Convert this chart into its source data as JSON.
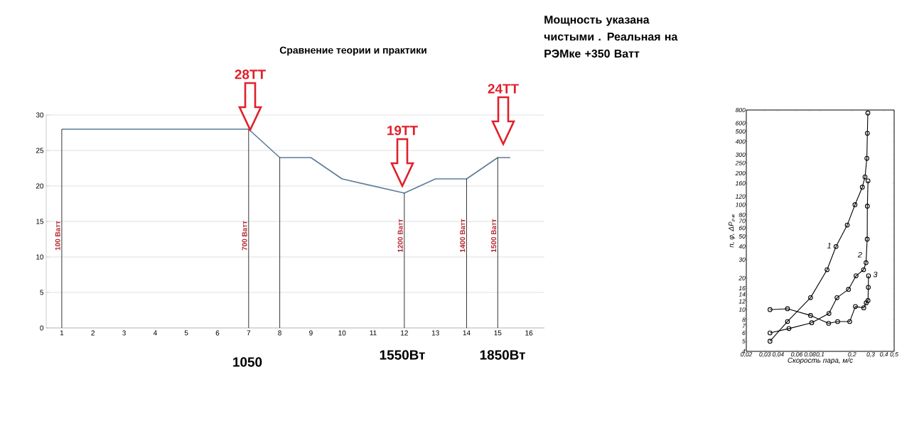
{
  "chart_data": [
    {
      "type": "line",
      "title": "Сравнение теории и практики",
      "x": [
        1,
        2,
        3,
        4,
        5,
        6,
        7,
        8,
        9,
        10,
        11,
        12,
        13,
        14,
        15,
        15.4
      ],
      "values": [
        28,
        28,
        28,
        28,
        28,
        28,
        28,
        24,
        24,
        21,
        20,
        19,
        21,
        21,
        24,
        24
      ],
      "color": "#5b7c99",
      "marker": "none",
      "line_style": "solid",
      "xlim": [
        0.5,
        16.5
      ],
      "ylim": [
        0,
        30
      ],
      "xticks": [
        1,
        2,
        3,
        4,
        5,
        6,
        7,
        8,
        9,
        10,
        11,
        12,
        13,
        14,
        15,
        16
      ],
      "yticks": [
        0,
        5,
        10,
        15,
        20,
        25,
        30
      ],
      "grid": "y",
      "ref_lines": [
        {
          "axis": "x",
          "value": 1,
          "label": "100 Ватт",
          "color": "#000000"
        },
        {
          "axis": "x",
          "value": 7,
          "label": "700 Ватт",
          "color": "#000000"
        },
        {
          "axis": "x",
          "value": 8,
          "color": "#000000"
        },
        {
          "axis": "x",
          "value": 12,
          "label": "1200 Ватт",
          "color": "#000000"
        },
        {
          "axis": "x",
          "value": 14,
          "label": "1400 Ватт",
          "color": "#000000"
        },
        {
          "axis": "x",
          "value": 15,
          "label": "1500 Ватт",
          "color": "#000000"
        }
      ],
      "annotations": [
        "28ТТ",
        "19ТТ",
        "24ТТ",
        "1050",
        "1550Вт",
        "1850Вт",
        "Мощность указана чистыми . Реальная на РЭМке +350 Ватт"
      ]
    },
    {
      "type": "line",
      "xlabel": "Скорость пара, м/с",
      "ylabel": "n, φ, ΔP$_{г-ж}$",
      "log": "xy",
      "marker": "circle",
      "line_style": "solid",
      "grid": false,
      "xlim": [
        0.02,
        0.5
      ],
      "ylim": [
        4,
        800
      ],
      "xticks": [
        {
          "value": 0.02,
          "label": "0,02"
        },
        {
          "value": 0.03,
          "label": "0,03"
        },
        {
          "value": 0.04,
          "label": "0,04"
        },
        {
          "value": 0.06,
          "label": "0,06"
        },
        {
          "value": 0.08,
          "label": "0,08"
        },
        {
          "value": 0.1,
          "label": "0,1"
        },
        {
          "value": 0.2,
          "label": "0,2"
        },
        {
          "value": 0.3,
          "label": "0,3"
        },
        {
          "value": 0.4,
          "label": "0,4"
        },
        {
          "value": 0.5,
          "label": "0,5"
        }
      ],
      "yticks": [
        4,
        5,
        6,
        7,
        8,
        10,
        12,
        14,
        16,
        20,
        30,
        40,
        50,
        60,
        70,
        80,
        100,
        120,
        160,
        200,
        250,
        300,
        400,
        500,
        600,
        800
      ],
      "series": [
        {
          "name": "1",
          "color": "#000000",
          "x": [
            0.0335,
            0.049,
            0.081,
            0.116,
            0.141,
            0.18,
            0.213,
            0.25,
            0.265,
            0.276,
            0.279,
            0.282
          ],
          "values": [
            5,
            7.7,
            13,
            24,
            40,
            64,
            100,
            147,
            184,
            277,
            480,
            750
          ]
        },
        {
          "name": "2",
          "color": "#000000",
          "x": [
            0.0335,
            0.0506,
            0.083,
            0.121,
            0.144,
            0.185,
            0.218,
            0.257,
            0.271,
            0.278,
            0.279,
            0.283
          ],
          "values": [
            6,
            6.6,
            7.5,
            9.2,
            13,
            15.6,
            21,
            24,
            28,
            47,
            97,
            169
          ]
        },
        {
          "name": "3",
          "color": "#000000",
          "x": [
            0.0335,
            0.049,
            0.081,
            0.12,
            0.146,
            0.19,
            0.215,
            0.258,
            0.272,
            0.283,
            0.285,
            0.286
          ],
          "values": [
            10,
            10.2,
            8.8,
            7.4,
            7.7,
            7.7,
            10.7,
            10.4,
            11.6,
            12.2,
            16.3,
            21
          ]
        }
      ]
    }
  ]
}
